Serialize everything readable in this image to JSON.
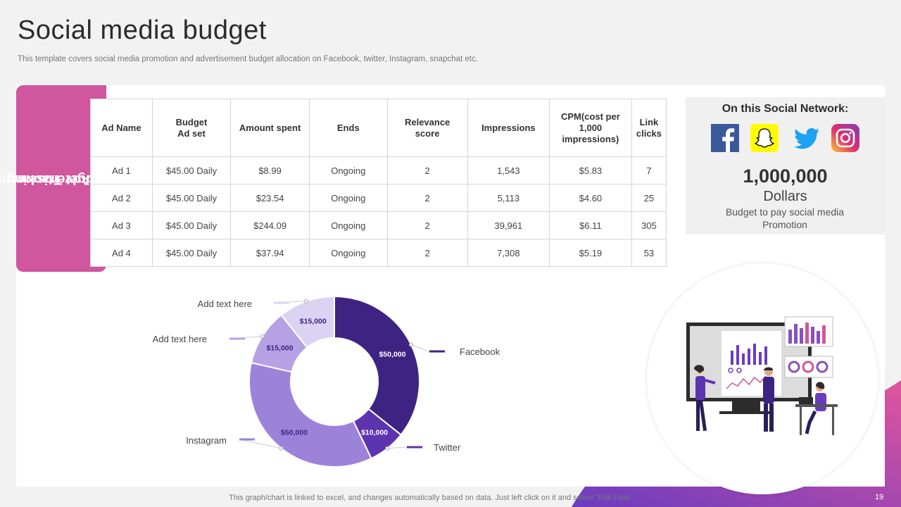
{
  "header": {
    "title": "Social media budget",
    "subtitle": "This template covers social media promotion and advertisement budget allocation on Facebook, twitter, Instagram, snapchat etc."
  },
  "side_tab": {
    "line1": "Advertisement",
    "line2": "Budget Tracking"
  },
  "table": {
    "headers": [
      "Ad Name",
      "Budget\nAd set",
      "Amount spent",
      "Ends",
      "Relevance score",
      "Impressions",
      "CPM(cost per 1,000 impressions)",
      "Link clicks"
    ],
    "rows": [
      [
        "Ad 1",
        "$45.00 Daily",
        "$8.99",
        "Ongoing",
        "2",
        "1,543",
        "$5.83",
        "7"
      ],
      [
        "Ad 2",
        "$45.00 Daily",
        "$23.54",
        "Ongoing",
        "2",
        "5,113",
        "$4.60",
        "25"
      ],
      [
        "Ad 3",
        "$45.00 Daily",
        "$244.09",
        "Ongoing",
        "2",
        "39,961",
        "$6.11",
        "305"
      ],
      [
        "Ad 4",
        "$45.00 Daily",
        "$37.94",
        "Ongoing",
        "2",
        "7,308",
        "$5.19",
        "53"
      ]
    ]
  },
  "network": {
    "title": "On this Social Network:",
    "icons": [
      "facebook-icon",
      "snapchat-icon",
      "twitter-icon",
      "instagram-icon"
    ],
    "amount": "1,000,000",
    "unit": "Dollars",
    "note": "Budget to pay social media Promotion"
  },
  "chart_data": {
    "type": "pie",
    "donut": true,
    "slices": [
      {
        "label": "Facebook",
        "value": 50000,
        "value_label": "$50,000",
        "color": "#3f2382"
      },
      {
        "label": "Twitter",
        "value": 10000,
        "value_label": "$10,000",
        "color": "#5d34b0"
      },
      {
        "label": "Instagram",
        "value": 50000,
        "value_label": "$50,000",
        "color": "#9d82da"
      },
      {
        "label": "Add text here",
        "value": 15000,
        "value_label": "$15,000",
        "color": "#b5a1e3"
      },
      {
        "label": "Add text here",
        "value": 15000,
        "value_label": "$15,000",
        "color": "#dcd3f2"
      }
    ]
  },
  "footer": {
    "note": "This graph/chart is linked to excel,  and changes automatically based on data. Just left click on it and select “Edit Data”.",
    "page": "19"
  },
  "colors": {
    "accent_pink": "#d0569e",
    "accent_purple": "#5d34b0"
  }
}
